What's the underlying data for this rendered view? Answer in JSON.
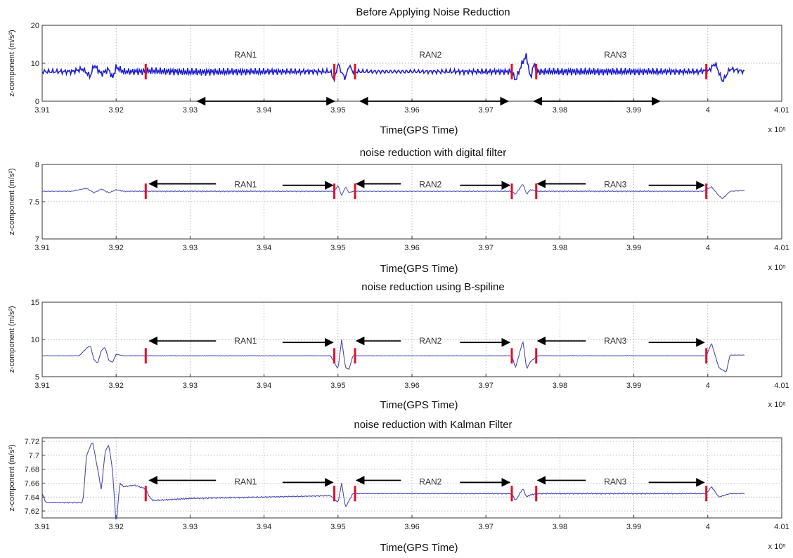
{
  "chart_data": [
    {
      "type": "line",
      "title": "Before Applying Noise Reduction",
      "xlabel": "Time(GPS Time)",
      "ylabel": "z-component (m/s²)",
      "x_multiplier": "x 10⁵",
      "xlim": [
        3.91,
        4.01
      ],
      "ylim": [
        0,
        20
      ],
      "xticks": [
        "3.91",
        "3.92",
        "3.93",
        "3.94",
        "3.95",
        "3.96",
        "3.97",
        "3.98",
        "3.99",
        "4",
        "4.01"
      ],
      "yticks": [
        "0",
        "10",
        "20"
      ],
      "grid": true,
      "series": [
        {
          "color": "#1f1fd0",
          "points": [
            [
              3.91,
              7.8
            ],
            [
              3.914,
              7.8
            ],
            [
              3.9155,
              8.5
            ],
            [
              3.9165,
              6.5
            ],
            [
              3.917,
              9.5
            ],
            [
              3.918,
              7.2
            ],
            [
              3.919,
              8.4
            ],
            [
              3.9195,
              6.0
            ],
            [
              3.92,
              9.0
            ],
            [
              3.921,
              7.8
            ],
            [
              3.9235,
              7.8
            ],
            [
              3.924,
              8.0
            ],
            [
              3.93,
              7.7
            ],
            [
              3.94,
              7.8
            ],
            [
              3.946,
              7.8
            ],
            [
              3.949,
              7.8
            ],
            [
              3.9495,
              5.5
            ],
            [
              3.95,
              10.0
            ],
            [
              3.9505,
              7.5
            ],
            [
              3.951,
              6.0
            ],
            [
              3.9515,
              9.5
            ],
            [
              3.952,
              7.8
            ],
            [
              3.96,
              7.8
            ],
            [
              3.97,
              7.8
            ],
            [
              3.9735,
              7.8
            ],
            [
              3.974,
              5.5
            ],
            [
              3.975,
              10.5
            ],
            [
              3.9755,
              12.0
            ],
            [
              3.976,
              6.0
            ],
            [
              3.9765,
              9.8
            ],
            [
              3.977,
              7.8
            ],
            [
              3.985,
              7.8
            ],
            [
              3.993,
              7.8
            ],
            [
              3.9985,
              7.8
            ],
            [
              3.9995,
              8.0
            ],
            [
              4.0,
              7.8
            ],
            [
              4.001,
              10.0
            ],
            [
              4.002,
              5.2
            ],
            [
              4.003,
              8.5
            ],
            [
              4.005,
              7.8
            ]
          ]
        }
      ],
      "noise": {
        "amplitude": 1.0
      },
      "markers": [
        3.924,
        3.9495,
        3.9523,
        3.9735,
        3.9768,
        3.9998
      ],
      "annotations": [
        {
          "text": "RAN1",
          "x": 3.9375,
          "y": 12.2
        },
        {
          "text": "RAN2",
          "x": 3.9625,
          "y": 12.2
        },
        {
          "text": "RAN3",
          "x": 3.9875,
          "y": 12.2
        }
      ],
      "arrows": [
        {
          "from": 3.9375,
          "to": 3.931,
          "y": 0
        },
        {
          "from": 3.9375,
          "to": 3.9495,
          "y": 0
        },
        {
          "from": 3.9625,
          "to": 3.953,
          "y": 0
        },
        {
          "from": 3.9625,
          "to": 3.973,
          "y": 0
        },
        {
          "from": 3.9875,
          "to": 3.9765,
          "y": 0
        },
        {
          "from": 3.9875,
          "to": 3.9935,
          "y": 0
        }
      ]
    },
    {
      "type": "line",
      "title": "noise reduction with digital filter",
      "xlabel": "Time(GPS Time)",
      "ylabel": "z-component (m/s²)",
      "x_multiplier": "x 10⁵",
      "xlim": [
        3.91,
        4.01
      ],
      "ylim": [
        7,
        8
      ],
      "xticks": [
        "3.91",
        "3.92",
        "3.93",
        "3.94",
        "3.95",
        "3.96",
        "3.97",
        "3.98",
        "3.99",
        "4",
        "4.01"
      ],
      "yticks": [
        "7",
        "7.5",
        "8"
      ],
      "grid": true,
      "series": [
        {
          "color": "#5a5ab8",
          "points": [
            [
              3.91,
              7.64
            ],
            [
              3.914,
              7.64
            ],
            [
              3.916,
              7.68
            ],
            [
              3.917,
              7.62
            ],
            [
              3.918,
              7.67
            ],
            [
              3.919,
              7.62
            ],
            [
              3.92,
              7.66
            ],
            [
              3.921,
              7.64
            ],
            [
              3.924,
              7.64
            ],
            [
              3.94,
              7.64
            ],
            [
              3.9495,
              7.64
            ],
            [
              3.95,
              7.72
            ],
            [
              3.9505,
              7.58
            ],
            [
              3.951,
              7.7
            ],
            [
              3.9515,
              7.62
            ],
            [
              3.952,
              7.64
            ],
            [
              3.97,
              7.64
            ],
            [
              3.9735,
              7.64
            ],
            [
              3.974,
              7.6
            ],
            [
              3.975,
              7.74
            ],
            [
              3.9755,
              7.6
            ],
            [
              3.976,
              7.66
            ],
            [
              3.977,
              7.64
            ],
            [
              3.9995,
              7.64
            ],
            [
              4.0005,
              7.7
            ],
            [
              4.0015,
              7.58
            ],
            [
              4.002,
              7.54
            ],
            [
              4.003,
              7.64
            ],
            [
              4.005,
              7.65
            ]
          ]
        }
      ],
      "noise": {
        "amplitude": 0.008
      },
      "markers": [
        3.924,
        3.9495,
        3.9523,
        3.9735,
        3.9768,
        3.9998
      ],
      "annotations": [
        {
          "text": "RAN1",
          "x": 3.9375,
          "y": 7.73
        },
        {
          "text": "RAN2",
          "x": 3.9625,
          "y": 7.73
        },
        {
          "text": "RAN3",
          "x": 3.9875,
          "y": 7.73
        }
      ],
      "arrows": [
        {
          "from": 3.9335,
          "to": 3.9245,
          "y": 7.74
        },
        {
          "from": 3.9425,
          "to": 3.9493,
          "y": 7.72
        },
        {
          "from": 3.9585,
          "to": 3.9525,
          "y": 7.74
        },
        {
          "from": 3.9665,
          "to": 3.9732,
          "y": 7.72
        },
        {
          "from": 3.9835,
          "to": 3.977,
          "y": 7.74
        },
        {
          "from": 3.992,
          "to": 3.9995,
          "y": 7.72
        }
      ]
    },
    {
      "type": "line",
      "title": "noise reduction using B-spiline",
      "xlabel": "Time(GPS Time)",
      "ylabel": "z-component (m/s²)",
      "x_multiplier": "x 10⁵",
      "xlim": [
        3.91,
        4.01
      ],
      "ylim": [
        5,
        15
      ],
      "xticks": [
        "3.91",
        "3.92",
        "3.93",
        "3.94",
        "3.95",
        "3.96",
        "3.97",
        "3.98",
        "3.99",
        "4",
        "4.01"
      ],
      "yticks": [
        "5",
        "10",
        "15"
      ],
      "grid": true,
      "series": [
        {
          "color": "#4a4ab0",
          "points": [
            [
              3.91,
              7.8
            ],
            [
              3.915,
              7.8
            ],
            [
              3.916,
              8.8
            ],
            [
              3.9165,
              9.2
            ],
            [
              3.917,
              7.3
            ],
            [
              3.9175,
              6.8
            ],
            [
              3.918,
              8.5
            ],
            [
              3.9185,
              9.0
            ],
            [
              3.919,
              7.2
            ],
            [
              3.9195,
              6.9
            ],
            [
              3.92,
              8.0
            ],
            [
              3.921,
              7.8
            ],
            [
              3.924,
              7.8
            ],
            [
              3.94,
              7.8
            ],
            [
              3.949,
              7.8
            ],
            [
              3.95,
              6.0
            ],
            [
              3.9505,
              10.0
            ],
            [
              3.951,
              6.2
            ],
            [
              3.9515,
              6.0
            ],
            [
              3.952,
              7.8
            ],
            [
              3.9735,
              7.8
            ],
            [
              3.974,
              6.2
            ],
            [
              3.975,
              9.8
            ],
            [
              3.9755,
              6.0
            ],
            [
              3.976,
              7.0
            ],
            [
              3.977,
              7.8
            ],
            [
              3.9998,
              7.8
            ],
            [
              4.0005,
              9.5
            ],
            [
              4.0015,
              6.2
            ],
            [
              4.0025,
              5.6
            ],
            [
              4.003,
              7.9
            ],
            [
              4.005,
              7.9
            ]
          ]
        }
      ],
      "noise": {
        "amplitude": 0.04
      },
      "markers": [
        3.924,
        3.9495,
        3.9523,
        3.9735,
        3.9768,
        3.9998
      ],
      "annotations": [
        {
          "text": "RAN1",
          "x": 3.9375,
          "y": 9.8
        },
        {
          "text": "RAN2",
          "x": 3.9625,
          "y": 9.8
        },
        {
          "text": "RAN3",
          "x": 3.9875,
          "y": 9.8
        }
      ],
      "arrows": [
        {
          "from": 3.9335,
          "to": 3.9245,
          "y": 9.8
        },
        {
          "from": 3.9425,
          "to": 3.9493,
          "y": 9.6
        },
        {
          "from": 3.9585,
          "to": 3.9525,
          "y": 9.8
        },
        {
          "from": 3.9665,
          "to": 3.9732,
          "y": 9.6
        },
        {
          "from": 3.9835,
          "to": 3.977,
          "y": 9.8
        },
        {
          "from": 3.992,
          "to": 3.9995,
          "y": 9.6
        }
      ]
    },
    {
      "type": "line",
      "title": "noise reduction with Kalman Filter",
      "xlabel": "Time(GPS Time)",
      "ylabel": "z-component (m/s²)",
      "x_multiplier": "x 10⁵",
      "xlim": [
        3.91,
        4.01
      ],
      "ylim": [
        7.61,
        7.725
      ],
      "xticks": [
        "3.91",
        "3.92",
        "3.93",
        "3.94",
        "3.95",
        "3.96",
        "3.97",
        "3.98",
        "3.99",
        "4",
        "4.01"
      ],
      "yticks": [
        "7.62",
        "7.64",
        "7.66",
        "7.68",
        "7.7",
        "7.72"
      ],
      "grid": true,
      "series": [
        {
          "color": "#4a4ab0",
          "points": [
            [
              3.91,
              7.645
            ],
            [
              3.9105,
              7.632
            ],
            [
              3.915,
              7.632
            ],
            [
              3.9155,
              7.632
            ],
            [
              3.916,
              7.7
            ],
            [
              3.9168,
              7.72
            ],
            [
              3.9175,
              7.68
            ],
            [
              3.918,
              7.65
            ],
            [
              3.9185,
              7.705
            ],
            [
              3.919,
              7.715
            ],
            [
              3.9195,
              7.68
            ],
            [
              3.92,
              7.6
            ],
            [
              3.9205,
              7.66
            ],
            [
              3.921,
              7.655
            ],
            [
              3.9225,
              7.657
            ],
            [
              3.924,
              7.652
            ],
            [
              3.9245,
              7.64
            ],
            [
              3.925,
              7.635
            ],
            [
              3.93,
              7.638
            ],
            [
              3.945,
              7.641
            ],
            [
              3.949,
              7.642
            ],
            [
              3.95,
              7.632
            ],
            [
              3.9505,
              7.66
            ],
            [
              3.951,
              7.625
            ],
            [
              3.9515,
              7.635
            ],
            [
              3.952,
              7.645
            ],
            [
              3.97,
              7.645
            ],
            [
              3.9735,
              7.645
            ],
            [
              3.974,
              7.635
            ],
            [
              3.975,
              7.652
            ],
            [
              3.9755,
              7.64
            ],
            [
              3.976,
              7.643
            ],
            [
              3.977,
              7.645
            ],
            [
              3.9998,
              7.645
            ],
            [
              4.0005,
              7.655
            ],
            [
              4.0015,
              7.64
            ],
            [
              4.003,
              7.645
            ],
            [
              4.005,
              7.645
            ]
          ]
        }
      ],
      "noise": {
        "amplitude": 0.001
      },
      "markers": [
        3.924,
        3.9495,
        3.9523,
        3.9735,
        3.9768,
        3.9998
      ],
      "annotations": [
        {
          "text": "RAN1",
          "x": 3.9375,
          "y": 7.662
        },
        {
          "text": "RAN2",
          "x": 3.9625,
          "y": 7.662
        },
        {
          "text": "RAN3",
          "x": 3.9875,
          "y": 7.662
        }
      ],
      "arrows": [
        {
          "from": 3.9335,
          "to": 3.9245,
          "y": 7.664
        },
        {
          "from": 3.9425,
          "to": 3.9493,
          "y": 7.661
        },
        {
          "from": 3.9585,
          "to": 3.9525,
          "y": 7.664
        },
        {
          "from": 3.9665,
          "to": 3.9732,
          "y": 7.661
        },
        {
          "from": 3.9835,
          "to": 3.977,
          "y": 7.664
        },
        {
          "from": 3.992,
          "to": 3.9995,
          "y": 7.661
        }
      ]
    }
  ]
}
